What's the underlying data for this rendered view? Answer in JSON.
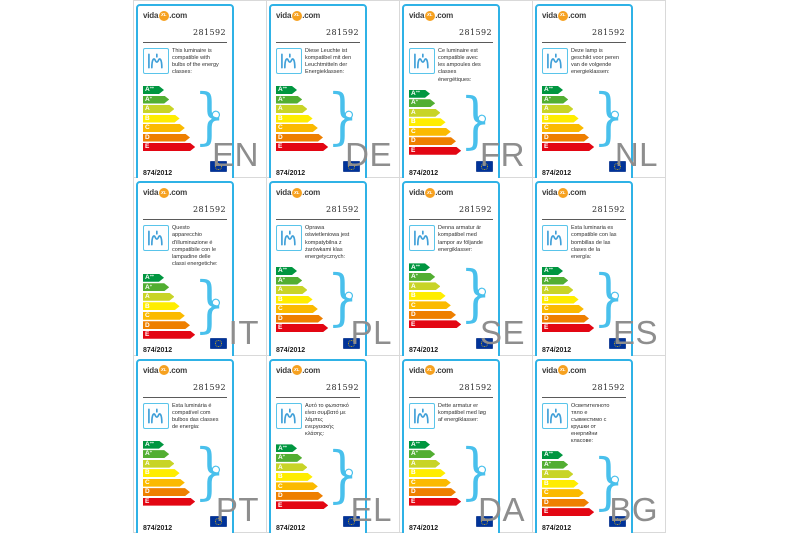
{
  "page": {
    "background": "#ffffff",
    "grid_line_color": "#d9d9d9",
    "language_code_color": "#8e8e8e"
  },
  "label_card": {
    "brand": {
      "prefix": "vida",
      "badge": "XL",
      "suffix": ".com",
      "badge_color": "#f6a120"
    },
    "product_number": "281592",
    "regulation": "874/2012",
    "accent_color": "#2fb2e6",
    "icon_color": "#49c0ec",
    "energy_classes": [
      {
        "code": "A++",
        "label": "A",
        "sup": "++",
        "color": "#009640"
      },
      {
        "code": "A+",
        "label": "A",
        "sup": "+",
        "color": "#52ae32"
      },
      {
        "code": "A",
        "label": "A",
        "sup": "",
        "color": "#c8d427"
      },
      {
        "code": "B",
        "label": "B",
        "sup": "",
        "color": "#ffed00"
      },
      {
        "code": "C",
        "label": "C",
        "sup": "",
        "color": "#fbba00"
      },
      {
        "code": "D",
        "label": "D",
        "sup": "",
        "color": "#ee7f00"
      },
      {
        "code": "E",
        "label": "E",
        "sup": "",
        "color": "#e30613"
      }
    ]
  },
  "cells": [
    {
      "lang": "EN",
      "description": "This luminaire is compatible with bulbs of the energy classes:"
    },
    {
      "lang": "DE",
      "description": "Diese Leuchte ist kompatibel mit den Leuchtmitteln der Energieklassen:"
    },
    {
      "lang": "FR",
      "description": "Ce luminaire est compatible avec les ampoules des classes énergétiques:"
    },
    {
      "lang": "NL",
      "description": "Deze lamp is geschikt voor peren van de volgende energieklassen:"
    },
    {
      "lang": "IT",
      "description": "Questo apparecchio d'illuminazione é compatibile con le lampadine delle classi energetiche:"
    },
    {
      "lang": "PL",
      "description": "Oprawa oświetleniowa jest kompatybilna z żarówkami klas energetycznych:"
    },
    {
      "lang": "SE",
      "description": "Denna armatur är kompatibel med lampor av följande energiklasser:"
    },
    {
      "lang": "ES",
      "description": "Esta luminaria es compatible con las bombillas de las clases de la energía:"
    },
    {
      "lang": "PT",
      "description": "Esta luminária é compatível com bulbos das classes de energia:"
    },
    {
      "lang": "EL",
      "description": "Αυτό το φωτιστικό είναι συμβατό με λάμπες ενεργειακής κλάσης:"
    },
    {
      "lang": "DA",
      "description": "Dette armatur er kompatibel med løg af energiklasser:"
    },
    {
      "lang": "BG",
      "description": "Осветителното тяло е съвместимо с крушки от енергийни класове:"
    }
  ]
}
